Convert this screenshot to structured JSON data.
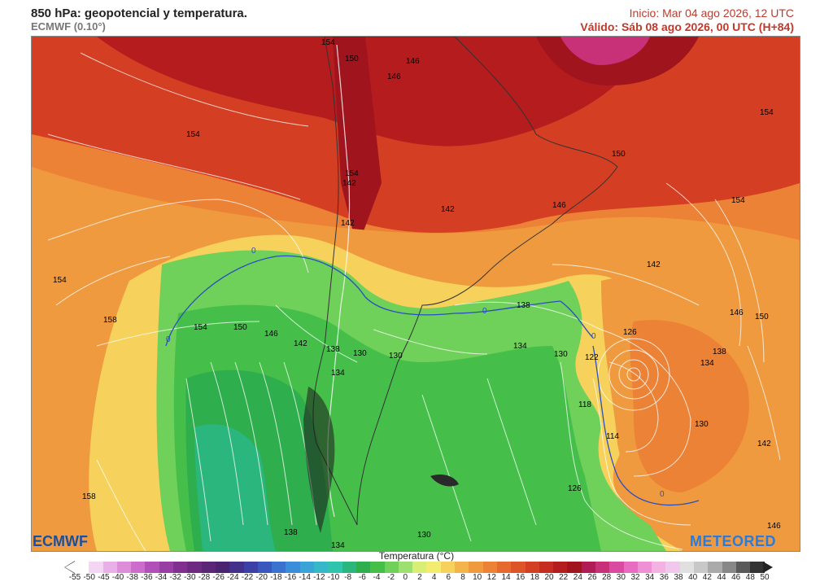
{
  "header": {
    "title": "850 hPa: geopotencial y temperatura.",
    "model": "ECMWF (0.10°)",
    "init": "Inicio: Mar 04 ago 2026, 12 UTC",
    "valid": "Válido: Sáb 08 ago 2026, 00 UTC (H+84)"
  },
  "logos": {
    "left": "ECMWF",
    "right": "METEORED"
  },
  "legend": {
    "title": "Temperatura (°C)",
    "labels": [
      "-55",
      "-50",
      "-45",
      "-40",
      "-38",
      "-36",
      "-34",
      "-32",
      "-30",
      "-28",
      "-26",
      "-24",
      "-22",
      "-20",
      "-18",
      "-16",
      "-14",
      "-12",
      "-10",
      "-8",
      "-6",
      "-4",
      "-2",
      "0",
      "2",
      "4",
      "6",
      "8",
      "10",
      "12",
      "14",
      "16",
      "18",
      "20",
      "22",
      "24",
      "26",
      "28",
      "30",
      "32",
      "34",
      "36",
      "38",
      "40",
      "42",
      "44",
      "46",
      "48",
      "50"
    ],
    "colors": [
      "#ffffff",
      "#f4d6f4",
      "#e8b0e6",
      "#dc8ed8",
      "#cc6ccc",
      "#b050b8",
      "#983ea4",
      "#82308f",
      "#6e2a80",
      "#5c2676",
      "#4a2470",
      "#43308a",
      "#3c3fa6",
      "#3a57c0",
      "#3a72d0",
      "#3a8dd8",
      "#3aa4d6",
      "#36b8c8",
      "#2fc4ac",
      "#2ab67c",
      "#2fae4e",
      "#45bf4a",
      "#6fd05a",
      "#9ee070",
      "#d8ee74",
      "#f2ec70",
      "#f6d25c",
      "#f4b44c",
      "#f09a40",
      "#ec8236",
      "#e66a2e",
      "#de5428",
      "#d43e22",
      "#c62c20",
      "#b41c1e",
      "#a0141e",
      "#b01c56",
      "#c83078",
      "#da4aa0",
      "#e86cc0",
      "#f090d4",
      "#f4b2e2",
      "#f0c8ec",
      "#e0e0e0",
      "#c8c8c8",
      "#aaaaaa",
      "#888888",
      "#5a5a5a",
      "#333333"
    ]
  },
  "isolines": [
    "154",
    "150",
    "146",
    "146",
    "154",
    "154",
    "154",
    "150",
    "154",
    "142",
    "142",
    "146",
    "142",
    "154",
    "142",
    "158",
    "154",
    "150",
    "146",
    "142",
    "138",
    "134",
    "130",
    "0",
    "0",
    "0",
    "0",
    "0",
    "138",
    "134",
    "130",
    "126",
    "122",
    "118",
    "114",
    "130",
    "134",
    "138",
    "146",
    "150",
    "142",
    "130",
    "126",
    "158",
    "138",
    "134",
    "130",
    "146"
  ]
}
